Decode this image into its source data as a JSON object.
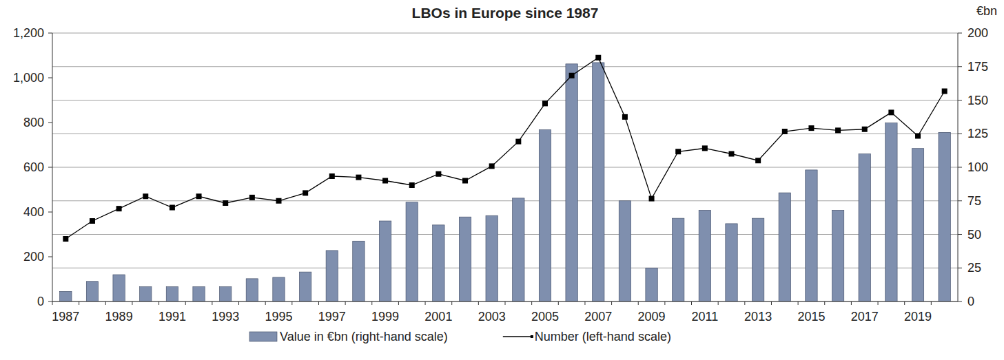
{
  "chart_data": {
    "type": "bar",
    "title": "LBOs in Europe since 1987",
    "y2_label": "€bn",
    "categories": [
      "1987",
      null,
      "1989",
      null,
      "1991",
      null,
      "1993",
      null,
      "1995",
      null,
      "1997",
      null,
      "1999",
      null,
      "2001",
      null,
      "2003",
      null,
      "2005",
      null,
      "2007",
      null,
      "2009",
      null,
      "2011",
      null,
      "2013",
      null,
      "2015",
      null,
      "2017",
      null,
      "2019",
      null
    ],
    "series": [
      {
        "name": "Value in €bn (right-hand scale)",
        "type": "bar",
        "axis": "y2",
        "color": "#7f8fae",
        "values": [
          7.5,
          15,
          20,
          11,
          11,
          11,
          11,
          17,
          18,
          22,
          38,
          45,
          60,
          74,
          57,
          63,
          64,
          77,
          128,
          177,
          178,
          75,
          25,
          62,
          68,
          58,
          62,
          81,
          98,
          68,
          110,
          133,
          114,
          126
        ]
      },
      {
        "name": "Number (left-hand scale)",
        "type": "line",
        "color": "#000000",
        "marker": "square",
        "line_style": "solid",
        "values": [
          280,
          360,
          415,
          470,
          420,
          470,
          440,
          465,
          450,
          485,
          560,
          555,
          540,
          520,
          570,
          540,
          605,
          715,
          885,
          1010,
          1090,
          825,
          460,
          670,
          685,
          660,
          630,
          760,
          775,
          765,
          770,
          845,
          740,
          940
        ]
      }
    ],
    "ylim": [
      0,
      1200
    ],
    "yticks": [
      0,
      200,
      400,
      600,
      800,
      {
        "value": 1000,
        "label": "1,000"
      },
      {
        "value": 1200,
        "label": "1,200"
      }
    ],
    "y2lim": [
      0,
      200
    ],
    "y2ticks": [
      0,
      25,
      50,
      75,
      100,
      125,
      150,
      175,
      200
    ],
    "grid": true,
    "legend": "bottom"
  }
}
